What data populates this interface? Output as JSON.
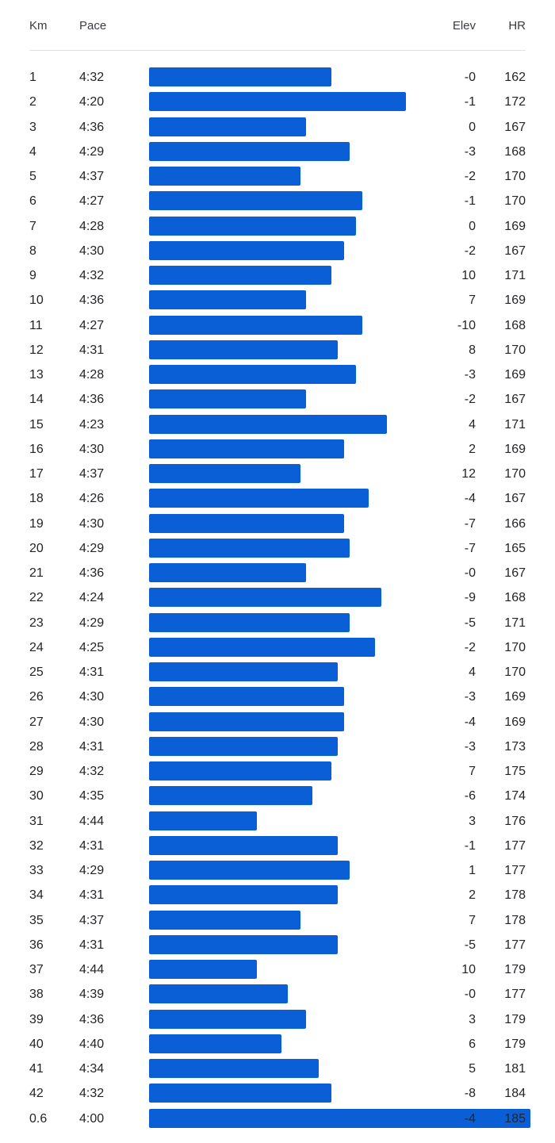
{
  "header": {
    "km": "Km",
    "pace": "Pace",
    "elev": "Elev",
    "hr": "HR"
  },
  "colors": {
    "bar": "#0a5fd6"
  },
  "splits": [
    {
      "km": "1",
      "pace": "4:32",
      "elev": "-0",
      "hr": "162"
    },
    {
      "km": "2",
      "pace": "4:20",
      "elev": "-1",
      "hr": "172"
    },
    {
      "km": "3",
      "pace": "4:36",
      "elev": "0",
      "hr": "167"
    },
    {
      "km": "4",
      "pace": "4:29",
      "elev": "-3",
      "hr": "168"
    },
    {
      "km": "5",
      "pace": "4:37",
      "elev": "-2",
      "hr": "170"
    },
    {
      "km": "6",
      "pace": "4:27",
      "elev": "-1",
      "hr": "170"
    },
    {
      "km": "7",
      "pace": "4:28",
      "elev": "0",
      "hr": "169"
    },
    {
      "km": "8",
      "pace": "4:30",
      "elev": "-2",
      "hr": "167"
    },
    {
      "km": "9",
      "pace": "4:32",
      "elev": "10",
      "hr": "171"
    },
    {
      "km": "10",
      "pace": "4:36",
      "elev": "7",
      "hr": "169"
    },
    {
      "km": "11",
      "pace": "4:27",
      "elev": "-10",
      "hr": "168"
    },
    {
      "km": "12",
      "pace": "4:31",
      "elev": "8",
      "hr": "170"
    },
    {
      "km": "13",
      "pace": "4:28",
      "elev": "-3",
      "hr": "169"
    },
    {
      "km": "14",
      "pace": "4:36",
      "elev": "-2",
      "hr": "167"
    },
    {
      "km": "15",
      "pace": "4:23",
      "elev": "4",
      "hr": "171"
    },
    {
      "km": "16",
      "pace": "4:30",
      "elev": "2",
      "hr": "169"
    },
    {
      "km": "17",
      "pace": "4:37",
      "elev": "12",
      "hr": "170"
    },
    {
      "km": "18",
      "pace": "4:26",
      "elev": "-4",
      "hr": "167"
    },
    {
      "km": "19",
      "pace": "4:30",
      "elev": "-7",
      "hr": "166"
    },
    {
      "km": "20",
      "pace": "4:29",
      "elev": "-7",
      "hr": "165"
    },
    {
      "km": "21",
      "pace": "4:36",
      "elev": "-0",
      "hr": "167"
    },
    {
      "km": "22",
      "pace": "4:24",
      "elev": "-9",
      "hr": "168"
    },
    {
      "km": "23",
      "pace": "4:29",
      "elev": "-5",
      "hr": "171"
    },
    {
      "km": "24",
      "pace": "4:25",
      "elev": "-2",
      "hr": "170"
    },
    {
      "km": "25",
      "pace": "4:31",
      "elev": "4",
      "hr": "170"
    },
    {
      "km": "26",
      "pace": "4:30",
      "elev": "-3",
      "hr": "169"
    },
    {
      "km": "27",
      "pace": "4:30",
      "elev": "-4",
      "hr": "169"
    },
    {
      "km": "28",
      "pace": "4:31",
      "elev": "-3",
      "hr": "173"
    },
    {
      "km": "29",
      "pace": "4:32",
      "elev": "7",
      "hr": "175"
    },
    {
      "km": "30",
      "pace": "4:35",
      "elev": "-6",
      "hr": "174"
    },
    {
      "km": "31",
      "pace": "4:44",
      "elev": "3",
      "hr": "176"
    },
    {
      "km": "32",
      "pace": "4:31",
      "elev": "-1",
      "hr": "177"
    },
    {
      "km": "33",
      "pace": "4:29",
      "elev": "1",
      "hr": "177"
    },
    {
      "km": "34",
      "pace": "4:31",
      "elev": "2",
      "hr": "178"
    },
    {
      "km": "35",
      "pace": "4:37",
      "elev": "7",
      "hr": "178"
    },
    {
      "km": "36",
      "pace": "4:31",
      "elev": "-5",
      "hr": "177"
    },
    {
      "km": "37",
      "pace": "4:44",
      "elev": "10",
      "hr": "179"
    },
    {
      "km": "38",
      "pace": "4:39",
      "elev": "-0",
      "hr": "177"
    },
    {
      "km": "39",
      "pace": "4:36",
      "elev": "3",
      "hr": "179"
    },
    {
      "km": "40",
      "pace": "4:40",
      "elev": "6",
      "hr": "179"
    },
    {
      "km": "41",
      "pace": "4:34",
      "elev": "5",
      "hr": "181"
    },
    {
      "km": "42",
      "pace": "4:32",
      "elev": "-8",
      "hr": "184"
    },
    {
      "km": "0.6",
      "pace": "4:00",
      "elev": "-4",
      "hr": "185"
    }
  ]
}
